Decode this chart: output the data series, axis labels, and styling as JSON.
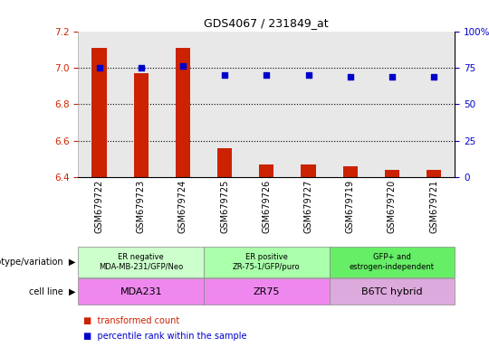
{
  "title": "GDS4067 / 231849_at",
  "samples": [
    "GSM679722",
    "GSM679723",
    "GSM679724",
    "GSM679725",
    "GSM679726",
    "GSM679727",
    "GSM679719",
    "GSM679720",
    "GSM679721"
  ],
  "bar_values": [
    7.11,
    6.97,
    7.11,
    6.56,
    6.47,
    6.47,
    6.46,
    6.44,
    6.44
  ],
  "dot_values": [
    75,
    75,
    76,
    70,
    70,
    70,
    69,
    69,
    69
  ],
  "ylim_left": [
    6.4,
    7.2
  ],
  "ylim_right": [
    0,
    100
  ],
  "yticks_left": [
    6.4,
    6.6,
    6.8,
    7.0,
    7.2
  ],
  "yticks_right": [
    0,
    25,
    50,
    75,
    100
  ],
  "bar_color": "#cc2200",
  "dot_color": "#0000cc",
  "bar_bottom": 6.4,
  "groups": [
    {
      "label": "ER negative\nMDA-MB-231/GFP/Neo",
      "start": 0,
      "end": 3,
      "color": "#ccffcc"
    },
    {
      "label": "ER positive\nZR-75-1/GFP/puro",
      "start": 3,
      "end": 6,
      "color": "#aaffaa"
    },
    {
      "label": "GFP+ and\nestrogen-independent",
      "start": 6,
      "end": 9,
      "color": "#66ee66"
    }
  ],
  "cell_lines": [
    {
      "label": "MDA231",
      "start": 0,
      "end": 3,
      "color": "#ee88ee"
    },
    {
      "label": "ZR75",
      "start": 3,
      "end": 6,
      "color": "#ee88ee"
    },
    {
      "label": "B6TC hybrid",
      "start": 6,
      "end": 9,
      "color": "#ddaadd"
    }
  ],
  "label_genotype": "genotype/variation",
  "label_cellline": "cell line",
  "legend_bar": "transformed count",
  "legend_dot": "percentile rank within the sample",
  "dotted_lines": [
    7.0,
    6.8,
    6.6
  ],
  "bg_color": "#ffffff",
  "tick_color_left": "#cc2200",
  "tick_color_right": "#0000cc",
  "col_bg": "#e8e8e8"
}
